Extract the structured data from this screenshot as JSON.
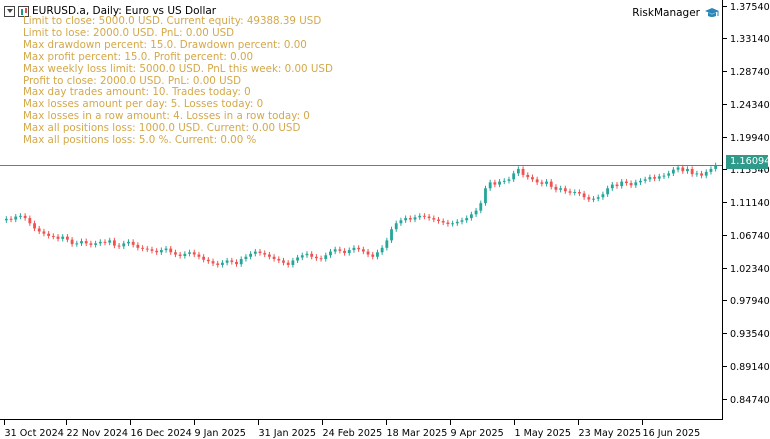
{
  "header": {
    "symbol_title": "EURUSD.a, Daily:  Euro vs US Dollar"
  },
  "expert": {
    "name": "RiskManager"
  },
  "risk_lines": [
    "Limit to close: 5000.0 USD. Current equity: 49388.39 USD",
    "Limit to lose: 2000.0 USD. PnL: 0.00 USD",
    "Max drawdown percent: 15.0. Drawdown percent: 0.00",
    "Max profit percent: 15.0. Profit percent: 0.00",
    "Max weekly loss limit: 5000.0 USD. PnL this week: 0.00 USD",
    "Profit to close: 2000.0 USD. PnL: 0.00 USD",
    "Max day trades amount: 10. Trades today: 0",
    "Max losses amount per day: 5. Losses today: 0",
    "Max losses in a row amount: 4. Losses in a row today: 0",
    "Max all positions loss: 1000.0 USD. Current: 0.00 USD",
    "Max all positions loss: 5.0 %. Current: 0.00 %"
  ],
  "colors": {
    "bull": "#26a69a",
    "bear": "#ef5350",
    "info_text": "#d4a84a",
    "price_line": "#2f9a8a",
    "axis": "#000000"
  },
  "chart_data": {
    "type": "candlestick",
    "title": "EURUSD.a, Daily:  Euro vs US Dollar",
    "ylim": [
      0.82,
      1.383
    ],
    "y_ticks": [
      "1.37540",
      "1.33140",
      "1.28740",
      "1.24340",
      "1.19940",
      "1.15540",
      "1.11140",
      "1.06740",
      "1.02340",
      "0.97940",
      "0.93540",
      "0.89140",
      "0.84740"
    ],
    "x_ticks": [
      "31 Oct 2024",
      "22 Nov 2024",
      "16 Dec 2024",
      "9 Jan 2025",
      "31 Jan 2025",
      "24 Feb 2025",
      "18 Mar 2025",
      "9 Apr 2025",
      "1 May 2025",
      "23 May 2025",
      "16 Jun 2025"
    ],
    "current_price": "1.16094",
    "current_price_value": 1.16094,
    "closes": [
      1.089,
      1.088,
      1.092,
      1.093,
      1.09,
      1.083,
      1.076,
      1.072,
      1.069,
      1.066,
      1.065,
      1.062,
      1.065,
      1.061,
      1.055,
      1.056,
      1.059,
      1.056,
      1.054,
      1.056,
      1.058,
      1.057,
      1.06,
      1.053,
      1.052,
      1.056,
      1.058,
      1.054,
      1.05,
      1.049,
      1.048,
      1.046,
      1.044,
      1.047,
      1.049,
      1.044,
      1.041,
      1.039,
      1.042,
      1.044,
      1.041,
      1.038,
      1.034,
      1.032,
      1.029,
      1.027,
      1.03,
      1.033,
      1.031,
      1.028,
      1.035,
      1.038,
      1.042,
      1.045,
      1.043,
      1.041,
      1.038,
      1.035,
      1.033,
      1.03,
      1.027,
      1.033,
      1.037,
      1.04,
      1.042,
      1.038,
      1.036,
      1.035,
      1.04,
      1.045,
      1.048,
      1.046,
      1.043,
      1.047,
      1.05,
      1.048,
      1.045,
      1.041,
      1.038,
      1.044,
      1.05,
      1.06,
      1.075,
      1.083,
      1.087,
      1.09,
      1.088,
      1.091,
      1.093,
      1.092,
      1.09,
      1.088,
      1.086,
      1.084,
      1.082,
      1.083,
      1.085,
      1.087,
      1.09,
      1.095,
      1.1,
      1.11,
      1.13,
      1.138,
      1.135,
      1.139,
      1.14,
      1.142,
      1.15,
      1.156,
      1.148,
      1.145,
      1.142,
      1.138,
      1.136,
      1.139,
      1.132,
      1.128,
      1.13,
      1.126,
      1.124,
      1.125,
      1.123,
      1.118,
      1.115,
      1.116,
      1.118,
      1.122,
      1.13,
      1.135,
      1.133,
      1.139,
      1.137,
      1.134,
      1.138,
      1.14,
      1.142,
      1.145,
      1.143,
      1.146,
      1.147,
      1.15,
      1.155,
      1.158,
      1.153,
      1.156,
      1.149,
      1.15,
      1.147,
      1.152,
      1.156,
      1.1609
    ]
  },
  "ea_hat_icon": "graduation-cap-icon"
}
